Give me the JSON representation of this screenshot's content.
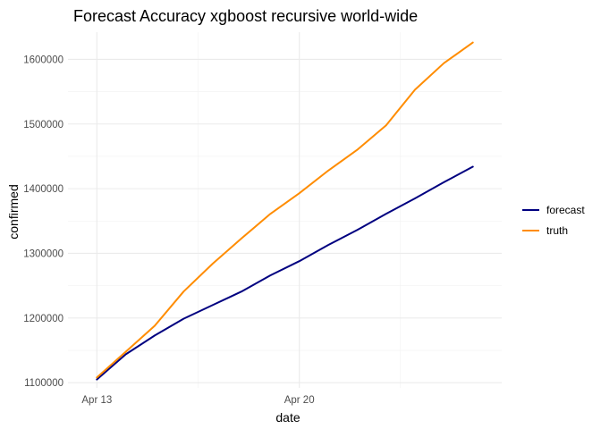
{
  "chart_data": {
    "type": "line",
    "title": "Forecast Accuracy xgboost recursive world-wide",
    "xlabel": "date",
    "ylabel": "confirmed",
    "x_ticks": [
      {
        "date": "2020-04-13",
        "label": "Apr 13"
      },
      {
        "date": "2020-04-20",
        "label": "Apr 20"
      }
    ],
    "y_ticks": [
      1100000,
      1200000,
      1300000,
      1400000,
      1500000,
      1600000
    ],
    "xlim": [
      "2020-04-12",
      "2020-04-27"
    ],
    "ylim": [
      1092000,
      1642000
    ],
    "grid": true,
    "legend_position": "right",
    "x": [
      "2020-04-13",
      "2020-04-14",
      "2020-04-15",
      "2020-04-16",
      "2020-04-17",
      "2020-04-18",
      "2020-04-19",
      "2020-04-20",
      "2020-04-21",
      "2020-04-22",
      "2020-04-23",
      "2020-04-24",
      "2020-04-25",
      "2020-04-26"
    ],
    "series": [
      {
        "name": "forecast",
        "color": "#000080",
        "values": [
          1105000,
          1144000,
          1173000,
          1199000,
          1220000,
          1241000,
          1266000,
          1288000,
          1313000,
          1336000,
          1361000,
          1385000,
          1410000,
          1434000
        ]
      },
      {
        "name": "truth",
        "color": "#FF8C00",
        "values": [
          1108000,
          1148000,
          1188000,
          1241000,
          1284000,
          1323000,
          1361000,
          1393000,
          1428000,
          1460000,
          1498000,
          1553000,
          1594000,
          1626000
        ]
      }
    ]
  }
}
